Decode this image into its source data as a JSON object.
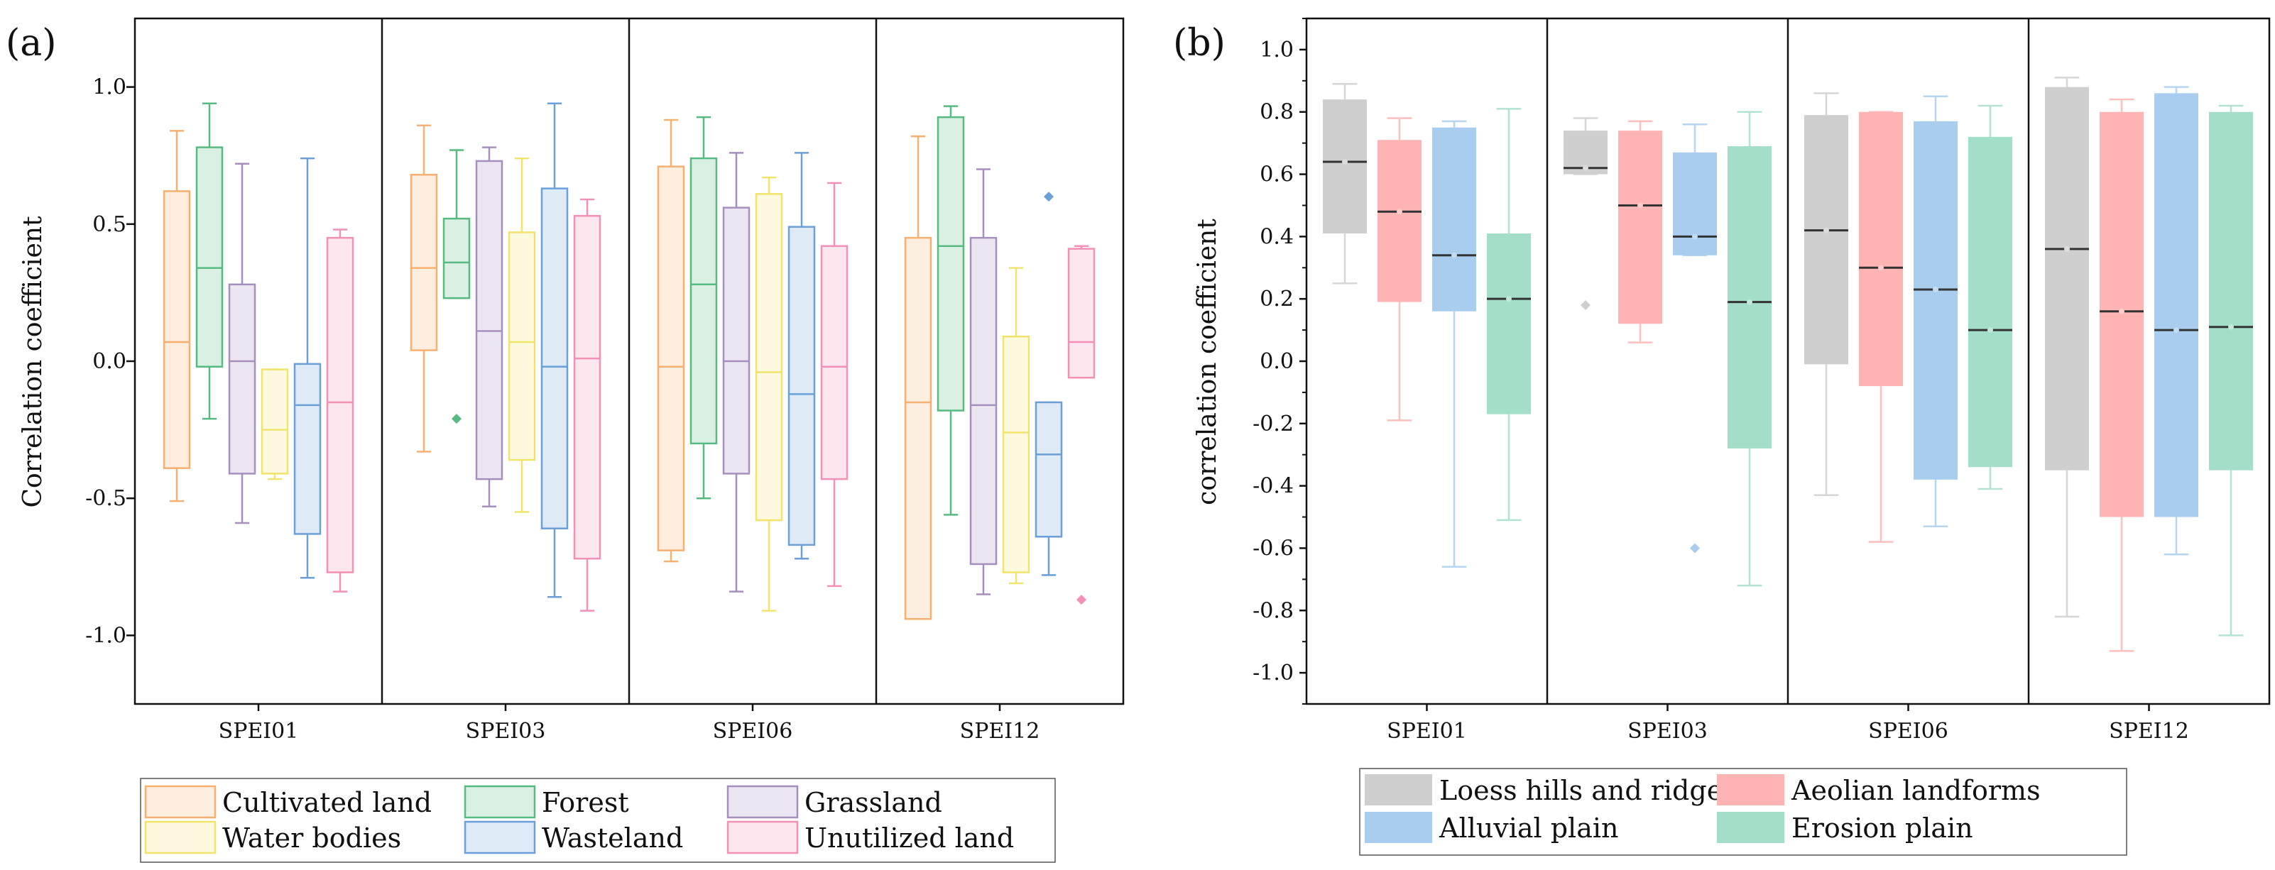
{
  "chart_data": [
    {
      "panel_label": "(a)",
      "type": "box",
      "ylabel": "Correlation coefficient",
      "ylim": [
        -1.25,
        1.25
      ],
      "yticks": [
        {
          "value": 1.0,
          "label": "1.0"
        },
        {
          "value": 0.5,
          "label": "0.5"
        },
        {
          "value": 0.0,
          "label": "0.0"
        },
        {
          "value": -0.5,
          "label": "-0.5"
        },
        {
          "value": -1.0,
          "label": "-1.0"
        }
      ],
      "categories": [
        "SPEI01",
        "SPEI03",
        "SPEI06",
        "SPEI12"
      ],
      "style": "outline",
      "series": [
        {
          "name": "Cultivated land",
          "color": "#f7b070",
          "boxes": [
            {
              "min": -0.51,
              "q1": -0.39,
              "median": 0.07,
              "q3": 0.62,
              "max": 0.84,
              "outliers": []
            },
            {
              "min": -0.33,
              "q1": 0.04,
              "median": 0.34,
              "q3": 0.68,
              "max": 0.86,
              "outliers": []
            },
            {
              "min": -0.73,
              "q1": -0.69,
              "median": -0.02,
              "q3": 0.71,
              "max": 0.88,
              "outliers": []
            },
            {
              "min": -0.94,
              "q1": -0.94,
              "median": -0.15,
              "q3": 0.45,
              "max": 0.82,
              "outliers": []
            }
          ]
        },
        {
          "name": "Forest",
          "color": "#55bb80",
          "boxes": [
            {
              "min": -0.21,
              "q1": -0.02,
              "median": 0.34,
              "q3": 0.78,
              "max": 0.94,
              "outliers": []
            },
            {
              "min": 0.23,
              "q1": 0.23,
              "median": 0.36,
              "q3": 0.52,
              "max": 0.77,
              "outliers": [
                -0.21
              ]
            },
            {
              "min": -0.5,
              "q1": -0.3,
              "median": 0.28,
              "q3": 0.74,
              "max": 0.89,
              "outliers": []
            },
            {
              "min": -0.56,
              "q1": -0.18,
              "median": 0.42,
              "q3": 0.89,
              "max": 0.93,
              "outliers": []
            }
          ]
        },
        {
          "name": "Grassland",
          "color": "#a68fbf",
          "boxes": [
            {
              "min": -0.59,
              "q1": -0.41,
              "median": 0.0,
              "q3": 0.28,
              "max": 0.72,
              "outliers": []
            },
            {
              "min": -0.53,
              "q1": -0.43,
              "median": 0.11,
              "q3": 0.73,
              "max": 0.78,
              "outliers": []
            },
            {
              "min": -0.84,
              "q1": -0.41,
              "median": 0.0,
              "q3": 0.56,
              "max": 0.76,
              "outliers": []
            },
            {
              "min": -0.85,
              "q1": -0.74,
              "median": -0.16,
              "q3": 0.45,
              "max": 0.7,
              "outliers": []
            }
          ]
        },
        {
          "name": "Water bodies",
          "color": "#f1e36b",
          "boxes": [
            {
              "min": -0.43,
              "q1": -0.41,
              "median": -0.25,
              "q3": -0.03,
              "max": -0.03,
              "outliers": []
            },
            {
              "min": -0.55,
              "q1": -0.36,
              "median": 0.07,
              "q3": 0.47,
              "max": 0.74,
              "outliers": []
            },
            {
              "min": -0.91,
              "q1": -0.58,
              "median": -0.04,
              "q3": 0.61,
              "max": 0.67,
              "outliers": []
            },
            {
              "min": -0.81,
              "q1": -0.77,
              "median": -0.26,
              "q3": 0.09,
              "max": 0.34,
              "outliers": []
            }
          ]
        },
        {
          "name": "Wasteland",
          "color": "#6a9fd8",
          "boxes": [
            {
              "min": -0.79,
              "q1": -0.63,
              "median": -0.16,
              "q3": -0.01,
              "max": 0.74,
              "outliers": []
            },
            {
              "min": -0.86,
              "q1": -0.61,
              "median": -0.02,
              "q3": 0.63,
              "max": 0.94,
              "outliers": []
            },
            {
              "min": -0.72,
              "q1": -0.67,
              "median": -0.12,
              "q3": 0.49,
              "max": 0.76,
              "outliers": []
            },
            {
              "min": -0.78,
              "q1": -0.64,
              "median": -0.34,
              "q3": -0.15,
              "max": -0.15,
              "outliers": [
                0.6
              ]
            }
          ]
        },
        {
          "name": "Unutilized land",
          "color": "#f290b6",
          "boxes": [
            {
              "min": -0.84,
              "q1": -0.77,
              "median": -0.15,
              "q3": 0.45,
              "max": 0.48,
              "outliers": []
            },
            {
              "min": -0.91,
              "q1": -0.72,
              "median": 0.01,
              "q3": 0.53,
              "max": 0.59,
              "outliers": []
            },
            {
              "min": -0.82,
              "q1": -0.43,
              "median": -0.02,
              "q3": 0.42,
              "max": 0.65,
              "outliers": []
            },
            {
              "min": -0.06,
              "q1": -0.06,
              "median": 0.07,
              "q3": 0.41,
              "max": 0.42,
              "outliers": [
                -0.87
              ]
            }
          ]
        }
      ]
    },
    {
      "panel_label": "(b)",
      "type": "box",
      "ylabel": "correlation coefficient",
      "ylim": [
        -1.1,
        1.1
      ],
      "yticks": [
        {
          "value": 1.0,
          "label": "1.0"
        },
        {
          "value": 0.8,
          "label": "0.8"
        },
        {
          "value": 0.6,
          "label": "0.6"
        },
        {
          "value": 0.4,
          "label": "0.4"
        },
        {
          "value": 0.2,
          "label": "0.2"
        },
        {
          "value": 0.0,
          "label": "0.0"
        },
        {
          "value": -0.2,
          "label": "-0.2"
        },
        {
          "value": -0.4,
          "label": "-0.4"
        },
        {
          "value": -0.6,
          "label": "-0.6"
        },
        {
          "value": -0.8,
          "label": "-0.8"
        },
        {
          "value": -1.0,
          "label": "-1.0"
        }
      ],
      "categories": [
        "SPEI01",
        "SPEI03",
        "SPEI06",
        "SPEI12"
      ],
      "style": "filled",
      "series": [
        {
          "name": "Loess hills and ridges",
          "color": "#cfcfcf",
          "boxes": [
            {
              "min": 0.25,
              "q1": 0.41,
              "median": 0.64,
              "q3": 0.84,
              "max": 0.89,
              "outliers": []
            },
            {
              "min": 0.6,
              "q1": 0.6,
              "median": 0.62,
              "q3": 0.74,
              "max": 0.78,
              "outliers": [
                0.18
              ]
            },
            {
              "min": -0.43,
              "q1": -0.01,
              "median": 0.42,
              "q3": 0.79,
              "max": 0.86,
              "outliers": []
            },
            {
              "min": -0.82,
              "q1": -0.35,
              "median": 0.36,
              "q3": 0.88,
              "max": 0.91,
              "outliers": []
            }
          ]
        },
        {
          "name": "Aeolian landforms",
          "color": "#ffb4b4",
          "boxes": [
            {
              "min": -0.19,
              "q1": 0.19,
              "median": 0.48,
              "q3": 0.71,
              "max": 0.78,
              "outliers": []
            },
            {
              "min": 0.06,
              "q1": 0.12,
              "median": 0.5,
              "q3": 0.74,
              "max": 0.77,
              "outliers": []
            },
            {
              "min": -0.58,
              "q1": -0.08,
              "median": 0.3,
              "q3": 0.8,
              "max": 0.8,
              "outliers": []
            },
            {
              "min": -0.93,
              "q1": -0.5,
              "median": 0.16,
              "q3": 0.8,
              "max": 0.84,
              "outliers": []
            }
          ]
        },
        {
          "name": "Alluvial plain",
          "color": "#a9cdee",
          "boxes": [
            {
              "min": -0.66,
              "q1": 0.16,
              "median": 0.34,
              "q3": 0.75,
              "max": 0.77,
              "outliers": []
            },
            {
              "min": 0.34,
              "q1": 0.34,
              "median": 0.4,
              "q3": 0.67,
              "max": 0.76,
              "outliers": [
                -0.6
              ]
            },
            {
              "min": -0.53,
              "q1": -0.38,
              "median": 0.23,
              "q3": 0.77,
              "max": 0.85,
              "outliers": []
            },
            {
              "min": -0.62,
              "q1": -0.5,
              "median": 0.1,
              "q3": 0.86,
              "max": 0.88,
              "outliers": []
            }
          ]
        },
        {
          "name": "Erosion plain",
          "color": "#a3dec8",
          "boxes": [
            {
              "min": -0.51,
              "q1": -0.17,
              "median": 0.2,
              "q3": 0.41,
              "max": 0.81,
              "outliers": []
            },
            {
              "min": -0.72,
              "q1": -0.28,
              "median": 0.19,
              "q3": 0.69,
              "max": 0.8,
              "outliers": []
            },
            {
              "min": -0.41,
              "q1": -0.34,
              "median": 0.1,
              "q3": 0.72,
              "max": 0.82,
              "outliers": []
            },
            {
              "min": -0.88,
              "q1": -0.35,
              "median": 0.11,
              "q3": 0.8,
              "max": 0.82,
              "outliers": []
            }
          ]
        }
      ]
    }
  ]
}
